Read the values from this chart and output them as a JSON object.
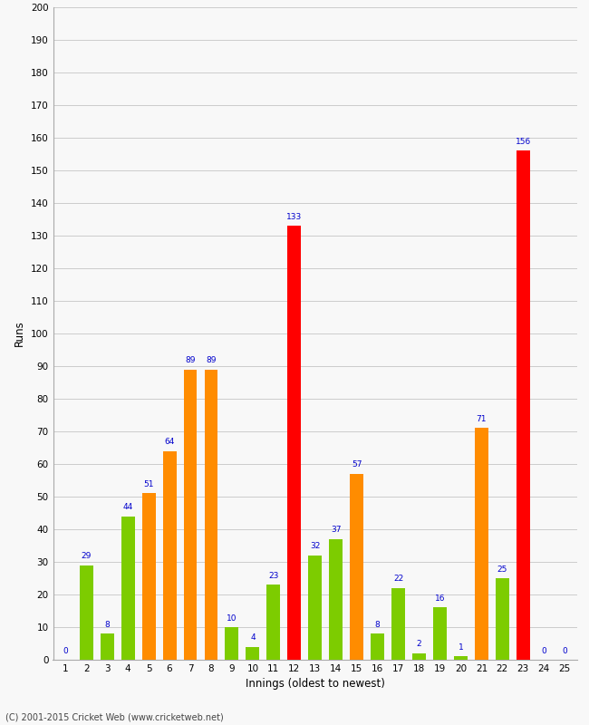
{
  "values": [
    0,
    29,
    8,
    44,
    51,
    64,
    89,
    89,
    10,
    4,
    23,
    133,
    32,
    37,
    57,
    8,
    22,
    2,
    16,
    1,
    71,
    25,
    156,
    0,
    0
  ],
  "innings": [
    1,
    2,
    3,
    4,
    5,
    6,
    7,
    8,
    9,
    10,
    11,
    12,
    13,
    14,
    15,
    16,
    17,
    18,
    19,
    20,
    21,
    22,
    23,
    24,
    25
  ],
  "color_thresholds": {
    "century": 100,
    "fifty": 50
  },
  "colors": {
    "century": "#ff0000",
    "fifty": "#ff8c00",
    "below_fifty": "#7dcc00"
  },
  "label_color": "#0000cc",
  "xlabel": "Innings (oldest to newest)",
  "ylabel": "Runs",
  "ylim": [
    0,
    200
  ],
  "yticks": [
    0,
    10,
    20,
    30,
    40,
    50,
    60,
    70,
    80,
    90,
    100,
    110,
    120,
    130,
    140,
    150,
    160,
    170,
    180,
    190,
    200
  ],
  "footer": "(C) 2001-2015 Cricket Web (www.cricketweb.net)",
  "bg_color": "#f8f8f8",
  "grid_color": "#cccccc",
  "bar_width": 0.65
}
